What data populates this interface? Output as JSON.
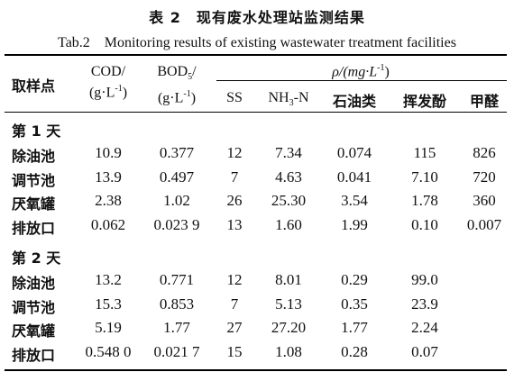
{
  "title_cn": "表 2　现有废水处理站监测结果",
  "title_en": "Tab.2　Monitoring results of existing wastewater treatment facilities",
  "header": {
    "sample_point": "取样点",
    "cod_line1": "COD/",
    "cod_line2": "(g·L",
    "bod_pre": "BOD",
    "bod_sub": "5",
    "bod_post": "/",
    "bod_line2": "(g·L",
    "unit_sup": "-1",
    "unit_close": ")",
    "rho_group": "ρ/(mg·L",
    "rho_close": ")",
    "cols": [
      "SS",
      "NH",
      "石油类",
      "挥发酚",
      "甲醛"
    ],
    "nh_sub": "3",
    "nh_post": "-N"
  },
  "sections": [
    {
      "label": "第 1 天",
      "rows": [
        {
          "name": "除油池",
          "vals": [
            "10.9",
            "0.377",
            "12",
            "7.34",
            "0.074",
            "115",
            "826"
          ]
        },
        {
          "name": "调节池",
          "vals": [
            "13.9",
            "0.497",
            "7",
            "4.63",
            "0.041",
            "7.10",
            "720"
          ]
        },
        {
          "name": "厌氧罐",
          "vals": [
            "2.38",
            "1.02",
            "26",
            "25.30",
            "3.54",
            "1.78",
            "360"
          ]
        },
        {
          "name": "排放口",
          "vals": [
            "0.062",
            "0.023 9",
            "13",
            "1.60",
            "1.99",
            "0.10",
            "0.007"
          ]
        }
      ]
    },
    {
      "label": "第 2 天",
      "rows": [
        {
          "name": "除油池",
          "vals": [
            "13.2",
            "0.771",
            "12",
            "8.01",
            "0.29",
            "99.0",
            ""
          ]
        },
        {
          "name": "调节池",
          "vals": [
            "15.3",
            "0.853",
            "7",
            "5.13",
            "0.35",
            "23.9",
            ""
          ]
        },
        {
          "name": "厌氧罐",
          "vals": [
            "5.19",
            "1.77",
            "27",
            "27.20",
            "1.77",
            "2.24",
            ""
          ]
        },
        {
          "name": "排放口",
          "vals": [
            "0.548 0",
            "0.021 7",
            "15",
            "1.08",
            "0.28",
            "0.07",
            ""
          ]
        }
      ]
    }
  ]
}
